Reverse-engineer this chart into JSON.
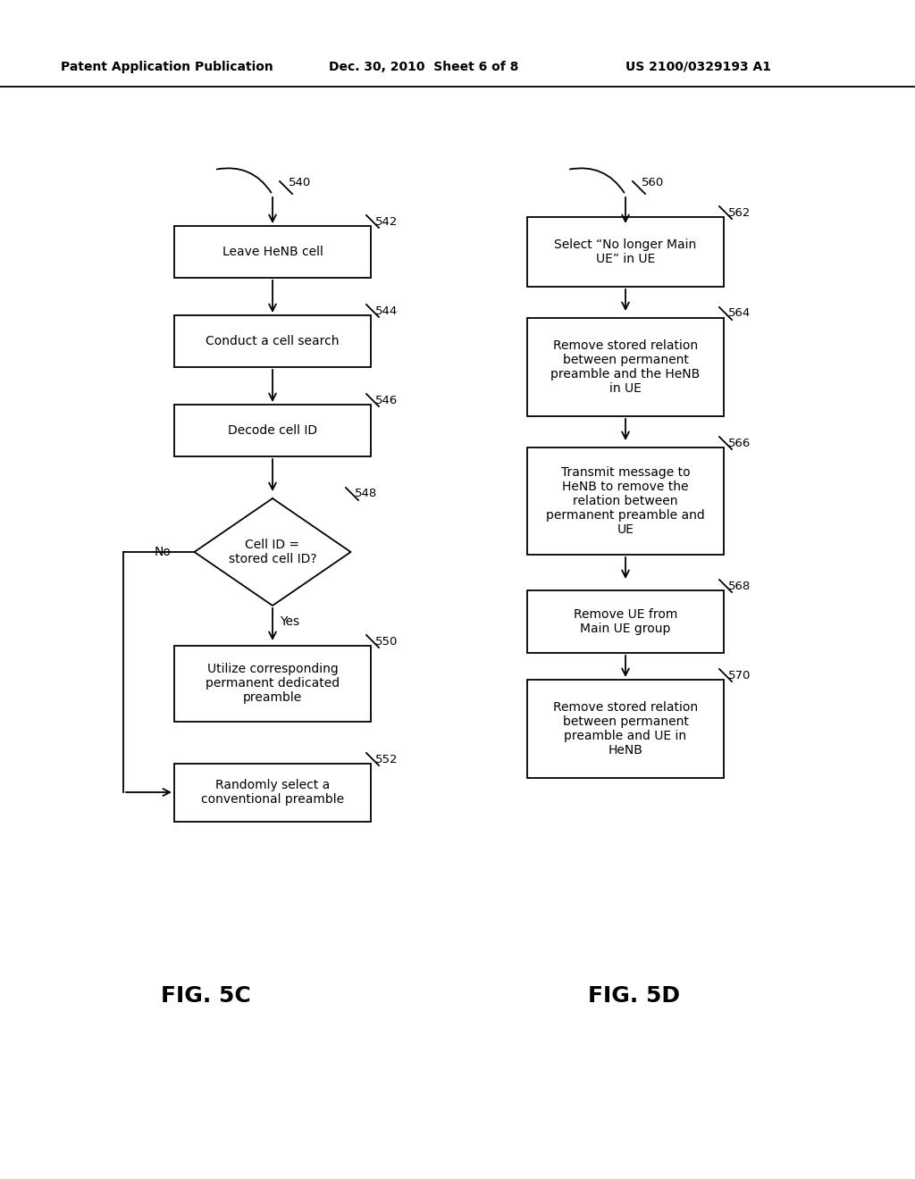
{
  "bg_color": "#ffffff",
  "header_left": "Patent Application Publication",
  "header_mid": "Dec. 30, 2010  Sheet 6 of 8",
  "header_right": "US 2100/0329193 A1",
  "fig5c_label": "FIG. 5C",
  "fig5d_label": "FIG. 5D",
  "line_color": "#000000",
  "box_edge_color": "#000000",
  "text_color": "#000000"
}
